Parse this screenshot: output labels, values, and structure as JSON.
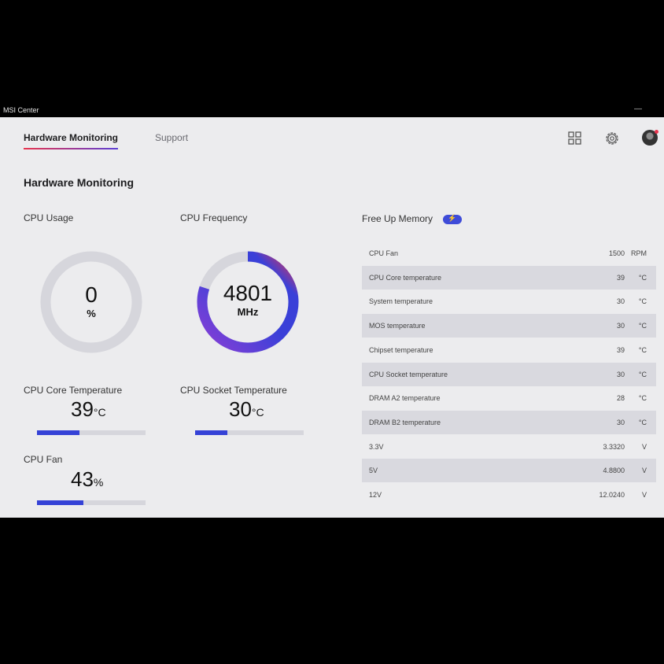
{
  "window": {
    "title": "MSI Center",
    "minimize_glyph": "—"
  },
  "nav": {
    "tabs": [
      {
        "label": "Hardware Monitoring"
      },
      {
        "label": "Support"
      }
    ]
  },
  "header_icons": [
    "grid-icon",
    "gear-icon",
    "avatar"
  ],
  "page_title": "Hardware Monitoring",
  "cpu_usage": {
    "label": "CPU Usage",
    "value": "0",
    "unit": "%",
    "fraction": 0
  },
  "cpu_frequency": {
    "label": "CPU Frequency",
    "value": "4801",
    "unit": "MHz",
    "fraction": 0.8
  },
  "metrics": [
    {
      "label": "CPU Core Temperature",
      "value": "39",
      "unit": "°C",
      "fraction": 0.39
    },
    {
      "label": "CPU Socket Temperature",
      "value": "30",
      "unit": "°C",
      "fraction": 0.3
    },
    {
      "label": "CPU Fan",
      "value": "43",
      "unit": "%",
      "fraction": 0.43
    }
  ],
  "free_up_memory": {
    "label": "Free Up Memory",
    "icon": "bolt-icon"
  },
  "sensors": [
    {
      "name": "CPU Fan",
      "value": "1500",
      "unit": "RPM"
    },
    {
      "name": "CPU Core temperature",
      "value": "39",
      "unit": "°C"
    },
    {
      "name": "System temperature",
      "value": "30",
      "unit": "°C"
    },
    {
      "name": "MOS temperature",
      "value": "30",
      "unit": "°C"
    },
    {
      "name": "Chipset temperature",
      "value": "39",
      "unit": "°C"
    },
    {
      "name": "CPU Socket temperature",
      "value": "30",
      "unit": "°C"
    },
    {
      "name": "DRAM A2 temperature",
      "value": "28",
      "unit": "°C"
    },
    {
      "name": "DRAM B2 temperature",
      "value": "30",
      "unit": "°C"
    },
    {
      "name": "3.3V",
      "value": "3.3320",
      "unit": "V"
    },
    {
      "name": "5V",
      "value": "4.8800",
      "unit": "V"
    },
    {
      "name": "12V",
      "value": "12.0240",
      "unit": "V"
    }
  ],
  "colors": {
    "accent_blue": "#3542d6",
    "accent_red": "#e8344e",
    "track": "#d6d6dc",
    "app_bg": "#ececee"
  }
}
